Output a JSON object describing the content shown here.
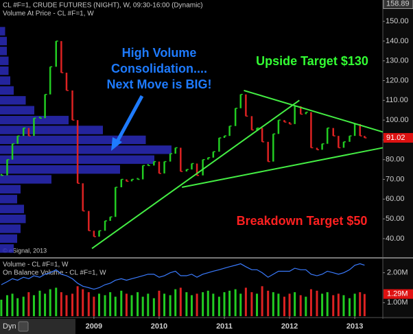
{
  "chart_data": {
    "type": "stock",
    "title": "CL #F=1, CRUDE FUTURES (NIGHT), W, 09:30-16:00 (Dynamic)",
    "subtitle": "Volume At Price - CL #F=1, W",
    "copyright": "© eSignal, 2013",
    "toolbar": "Dyn",
    "annotations": [
      {
        "lines": [
          "High Volume",
          "Consolidation....",
          "Next Move is BIG!"
        ],
        "color": "#1e7bff"
      },
      {
        "lines": [
          "Upside Target $130"
        ],
        "color": "#33ff33"
      },
      {
        "lines": [
          "Breakdown Target $50"
        ],
        "color": "#ff2020"
      }
    ],
    "x": [
      2007.58,
      2007.67,
      2007.75,
      2007.83,
      2007.92,
      2008.0,
      2008.08,
      2008.17,
      2008.25,
      2008.33,
      2008.42,
      2008.5,
      2008.58,
      2008.67,
      2008.75,
      2008.83,
      2008.92,
      2009.0,
      2009.08,
      2009.17,
      2009.25,
      2009.33,
      2009.42,
      2009.5,
      2009.58,
      2009.67,
      2009.75,
      2009.83,
      2009.92,
      2010.0,
      2010.08,
      2010.17,
      2010.25,
      2010.33,
      2010.42,
      2010.5,
      2010.58,
      2010.67,
      2010.75,
      2010.83,
      2010.92,
      2011.0,
      2011.08,
      2011.17,
      2011.25,
      2011.33,
      2011.42,
      2011.5,
      2011.58,
      2011.67,
      2011.75,
      2011.83,
      2011.92,
      2012.0,
      2012.08,
      2012.17,
      2012.25,
      2012.33,
      2012.42,
      2012.5,
      2012.58,
      2012.67,
      2012.75,
      2012.83,
      2012.92,
      2013.0,
      2013.08,
      2013.15
    ],
    "values": [
      72,
      80,
      88,
      92,
      96,
      92,
      101,
      101,
      113,
      127,
      140,
      124,
      115,
      100,
      68,
      54,
      44,
      41,
      44,
      49,
      51,
      66,
      70,
      69,
      70,
      70,
      77,
      77,
      79,
      73,
      79,
      83,
      86,
      74,
      75,
      78,
      72,
      80,
      81,
      84,
      91,
      92,
      97,
      106,
      113,
      102,
      95,
      96,
      89,
      79,
      93,
      100,
      99,
      98,
      107,
      103,
      104,
      86,
      85,
      88,
      96,
      92,
      86,
      89,
      92,
      98,
      92,
      91.02
    ],
    "up_color": "#22cc22",
    "down_color": "#dd2222",
    "xlim": [
      2007.56,
      2013.43
    ],
    "xticks": [
      2009,
      2010,
      2011,
      2012,
      2013
    ],
    "ylim": [
      30.6,
      160.8
    ],
    "yticks": [
      {
        "value": 40,
        "label": "40.00"
      },
      {
        "value": 50,
        "label": "50.00"
      },
      {
        "value": 60,
        "label": "60.00"
      },
      {
        "value": 70,
        "label": "70.00"
      },
      {
        "value": 80,
        "label": "80.00"
      },
      {
        "value": 90,
        "label": "90.00"
      },
      {
        "value": 100,
        "label": "100.00"
      },
      {
        "value": 110,
        "label": "110.00"
      },
      {
        "value": 120,
        "label": "120.00"
      },
      {
        "value": 130,
        "label": "130.00"
      },
      {
        "value": 140,
        "label": "140.00"
      },
      {
        "value": 150,
        "label": "150.00"
      }
    ],
    "high_marker": 158.89,
    "trend_lines": [
      {
        "x": [
          2008.97,
          2012.15
        ],
        "y": [
          35,
          110
        ],
        "color": "#44ee44"
      },
      {
        "x": [
          2010.35,
          2013.43
        ],
        "y": [
          66,
          86
        ],
        "color": "#44ee44"
      },
      {
        "x": [
          2011.3,
          2013.43
        ],
        "y": [
          115,
          94
        ],
        "color": "#44ee44"
      }
    ],
    "volume_at_price": {
      "color": "#2a2ab8",
      "levels": [
        35,
        40,
        45,
        50,
        55,
        60,
        65,
        70,
        75,
        80,
        85,
        90,
        95,
        100,
        105,
        110,
        115,
        120,
        125,
        130,
        135,
        140,
        145
      ],
      "values": [
        8,
        10,
        12,
        15,
        14,
        10,
        12,
        30,
        70,
        90,
        100,
        85,
        60,
        40,
        20,
        15,
        8,
        6,
        5,
        5,
        4,
        4,
        3
      ]
    },
    "volume_panel": {
      "title": "Volume - CL #F=1, W",
      "obv_title": "On Balance Volume - CL #F=1, W",
      "ylim": [
        550000,
        2450000
      ],
      "yticks": [
        {
          "value": 2000000,
          "label": "2.00M"
        },
        {
          "value": 1000000,
          "label": "1.00M"
        }
      ],
      "current": {
        "value": 1290000,
        "label": "1.29M"
      },
      "values": [
        1100000,
        1250000,
        1300000,
        1150000,
        1200000,
        1350000,
        1250000,
        1400000,
        1300000,
        1450000,
        1500000,
        1350000,
        1250000,
        1300000,
        1550000,
        1450000,
        1350000,
        1200000,
        1300000,
        1250000,
        1350000,
        1200000,
        1400000,
        1300000,
        1250000,
        1350000,
        1200000,
        1300000,
        1150000,
        1400000,
        1300000,
        1250000,
        1450000,
        1500000,
        1350000,
        1250000,
        1300000,
        1350000,
        1400000,
        1300000,
        1200000,
        1350000,
        1400000,
        1450000,
        1300000,
        1500000,
        1350000,
        1300000,
        1550000,
        1400000,
        1350000,
        1300000,
        1200000,
        1300000,
        1350000,
        1250000,
        1200000,
        1450000,
        1400000,
        1300000,
        1350000,
        1250000,
        1300000,
        1250000,
        1150000,
        1300000,
        1350000,
        1290000
      ],
      "obv": {
        "color": "#3a7bff",
        "values": [
          1600000,
          1700000,
          1800000,
          1750000,
          1850000,
          1800000,
          1900000,
          1850000,
          1950000,
          2000000,
          2100000,
          1950000,
          1900000,
          1800000,
          1650000,
          1550000,
          1500000,
          1450000,
          1500000,
          1600000,
          1650000,
          1750000,
          1800000,
          1750000,
          1800000,
          1850000,
          1900000,
          1950000,
          1950000,
          1850000,
          1900000,
          2000000,
          2050000,
          1900000,
          1900000,
          1950000,
          1850000,
          1950000,
          2000000,
          2050000,
          2100000,
          2150000,
          2200000,
          2250000,
          2300000,
          2200000,
          2100000,
          2100000,
          2000000,
          1850000,
          1950000,
          2050000,
          2050000,
          2050000,
          2150000,
          2100000,
          2100000,
          1950000,
          1900000,
          1950000,
          2050000,
          2000000,
          1950000,
          2000000,
          2100000,
          2250000,
          2300000,
          2250000
        ]
      }
    }
  }
}
